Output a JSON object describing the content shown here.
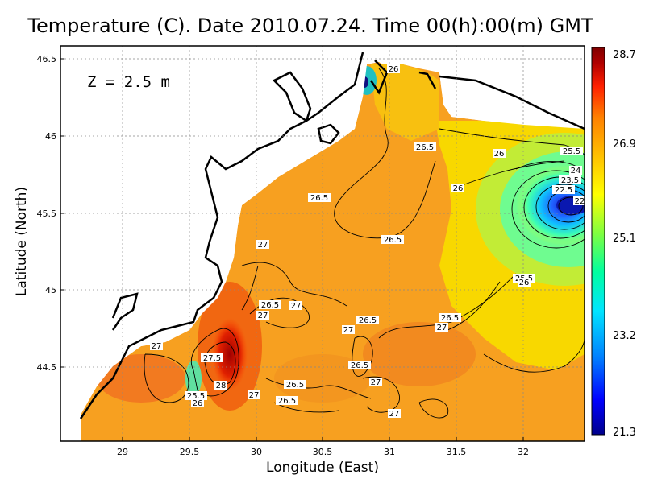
{
  "title": "Temperature (C). Date 2010.07.24. Time 00(h):00(m) GMT",
  "depth_label": "Z = 2.5 m",
  "x_axis": {
    "label": "Longitude (East)",
    "ticks": [
      "29",
      "29.5",
      "30",
      "30.5",
      "31",
      "31.5",
      "32"
    ]
  },
  "y_axis": {
    "label": "Latitude (North)",
    "ticks": [
      "46.5",
      "46",
      "45.5",
      "45",
      "44.5"
    ]
  },
  "colorbar": {
    "ticks": [
      "28.7",
      "26.9",
      "25.1",
      "23.2",
      "21.3"
    ],
    "colors": [
      "#00008b",
      "#0000ff",
      "#0080ff",
      "#00e5ff",
      "#00ffa0",
      "#80ff40",
      "#ffff00",
      "#ffc000",
      "#ff8000",
      "#ff2000",
      "#b00000",
      "#800000"
    ]
  },
  "contour_labels": [
    "26",
    "26.5",
    "26",
    "25.5",
    "24",
    "23.5",
    "22.5",
    "22",
    "26",
    "26.5",
    "26.5",
    "27",
    "25.5",
    "26",
    "26.5",
    "27",
    "27",
    "26.5",
    "26.5",
    "27",
    "26.5",
    "26.5",
    "27",
    "27.5",
    "28",
    "25.5",
    "26",
    "27",
    "27",
    "26.5",
    "27",
    "27"
  ],
  "chart_data": {
    "type": "heatmap",
    "title": "Temperature (C). Date 2010.07.24. Time 00(h):00(m) GMT",
    "xlabel": "Longitude (East)",
    "ylabel": "Latitude (North)",
    "xlim": [
      28.6,
      32.45
    ],
    "ylim": [
      44.05,
      46.55
    ],
    "colorbar_range": [
      21.3,
      28.7
    ],
    "depth": "Z = 2.5 m"
  }
}
